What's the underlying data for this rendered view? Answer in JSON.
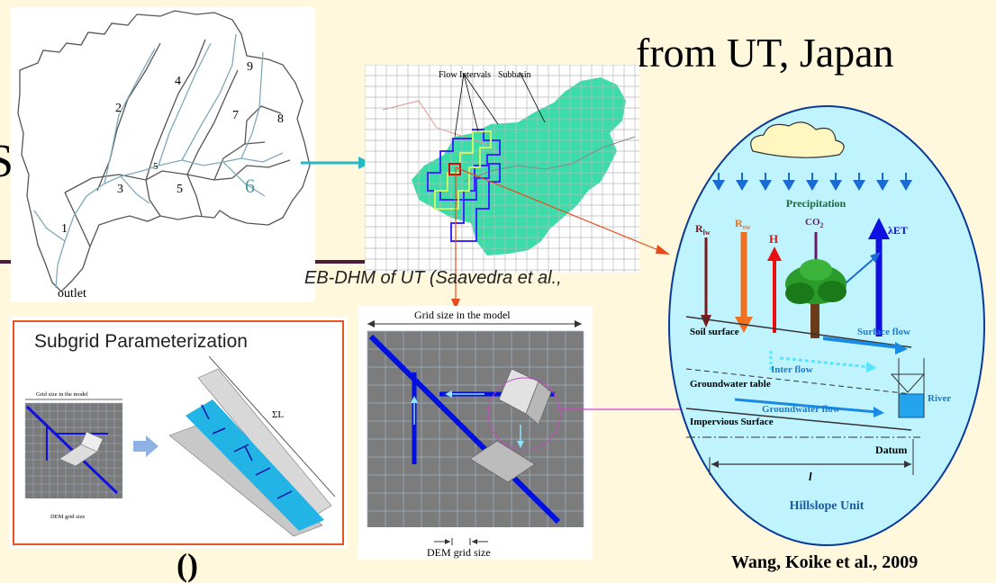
{
  "slide": {
    "title_right": "from UT, Japan",
    "title_left_fragment": "S",
    "citation_partial": "EB-DHM of UT (Saavedra et al.,",
    "bottom_fragment": "()",
    "credit": "Wang, Koike et al., 2009"
  },
  "watershed": {
    "subbasin_labels": [
      "1",
      "2",
      "3",
      "4",
      "5",
      "5",
      "6",
      "7",
      "8",
      "9"
    ],
    "outlet_label": "outlet"
  },
  "grid_map": {
    "flow_intervals_label": "Flow Intervals",
    "subbasin_label": "Subbasin"
  },
  "subgrid": {
    "title": "Subgrid Parameterization",
    "grid_size_label": "Grid size in the model",
    "dem_label": "DEM grid size",
    "sum_length_label": "ΣL"
  },
  "grid_detail": {
    "grid_size_label": "Grid size in the model",
    "dem_label": "DEM grid size"
  },
  "hillslope": {
    "precipitation": "Precipitation",
    "let": "λET",
    "rlw": "R",
    "rlw_sub": "lw",
    "rsw": "R",
    "rsw_sub": "sw",
    "h": "H",
    "co2": "CO",
    "co2_sub": "2",
    "soil_surface": "Soil surface",
    "surface_flow": "Surface flow",
    "inter_flow": "Inter flow",
    "groundwater_table": "Groundwater table",
    "groundwater_flow": "Groundwater flow",
    "river": "River",
    "impervious_surface": "Impervious Surface",
    "datum": "Datum",
    "length_symbol": "l",
    "unit_label": "Hillslope Unit"
  },
  "colors": {
    "background": "#fff8dc",
    "title_divider": "#4b1c3c",
    "subbasin_fill": "#3cdca8",
    "hillslope_fill": "#bff4ff",
    "flow_blue": "#0010e0",
    "accent_red": "#e84c1c"
  }
}
